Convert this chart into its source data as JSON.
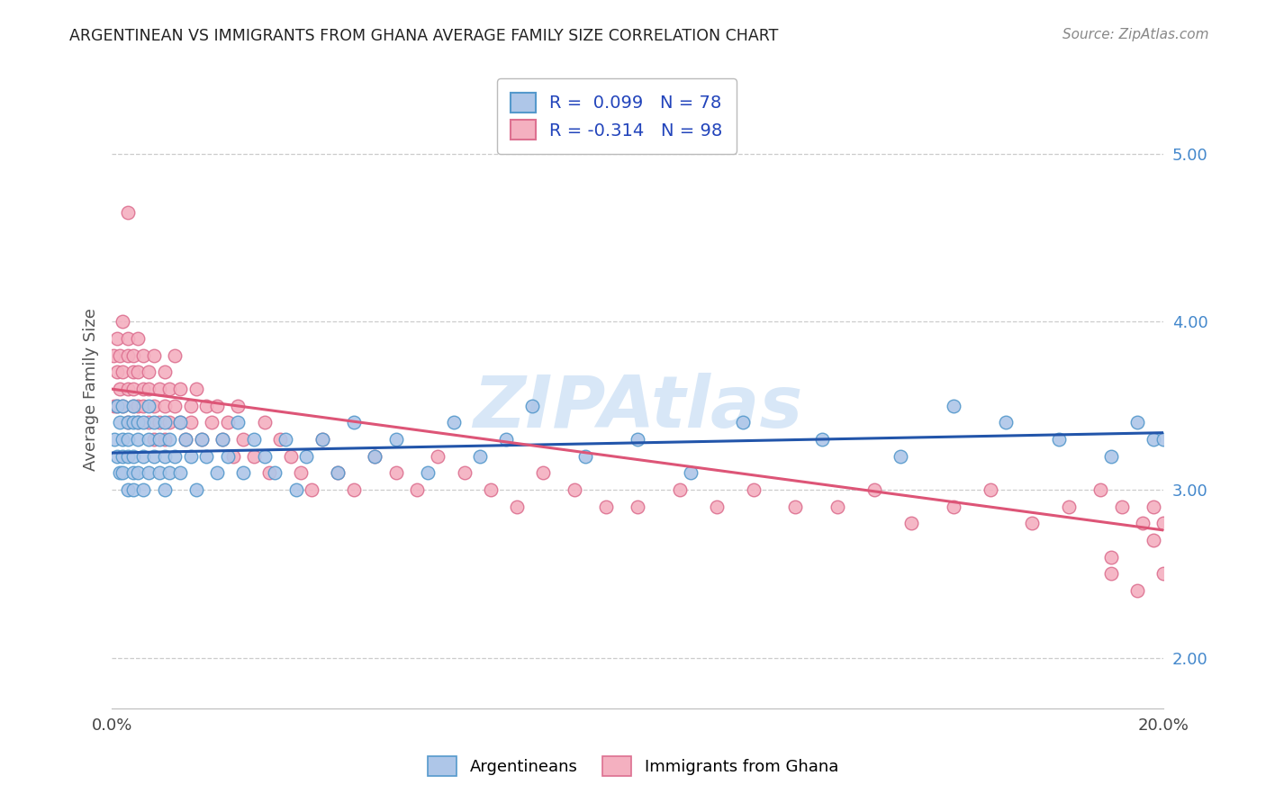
{
  "title": "ARGENTINEAN VS IMMIGRANTS FROM GHANA AVERAGE FAMILY SIZE CORRELATION CHART",
  "source": "Source: ZipAtlas.com",
  "ylabel": "Average Family Size",
  "xlim": [
    0.0,
    0.2
  ],
  "ylim": [
    1.7,
    5.5
  ],
  "yticks_right": [
    2.0,
    3.0,
    4.0,
    5.0
  ],
  "xticks": [
    0.0,
    0.05,
    0.1,
    0.15,
    0.2
  ],
  "xtick_labels": [
    "0.0%",
    "",
    "",
    "",
    "20.0%"
  ],
  "series": [
    {
      "name": "Argentineans",
      "color_face": "#aec6e8",
      "color_edge": "#5599cc",
      "R": 0.099,
      "N": 78,
      "line_color": "#2255aa",
      "trend_x": [
        0.0,
        0.2
      ],
      "trend_y": [
        3.22,
        3.34
      ]
    },
    {
      "name": "Immigrants from Ghana",
      "color_face": "#f4b0c0",
      "color_edge": "#dd7090",
      "R": -0.314,
      "N": 98,
      "line_color": "#dd5577",
      "trend_x": [
        0.0,
        0.2
      ],
      "trend_y": [
        3.6,
        2.76
      ]
    }
  ],
  "legend_text_color": "#2244bb",
  "background_color": "#ffffff",
  "grid_color": "#cccccc",
  "argentineans_x": [
    0.0005,
    0.001,
    0.001,
    0.0015,
    0.0015,
    0.002,
    0.002,
    0.002,
    0.002,
    0.003,
    0.003,
    0.003,
    0.003,
    0.004,
    0.004,
    0.004,
    0.004,
    0.004,
    0.005,
    0.005,
    0.005,
    0.006,
    0.006,
    0.006,
    0.007,
    0.007,
    0.007,
    0.008,
    0.008,
    0.009,
    0.009,
    0.01,
    0.01,
    0.01,
    0.011,
    0.011,
    0.012,
    0.013,
    0.013,
    0.014,
    0.015,
    0.016,
    0.017,
    0.018,
    0.02,
    0.021,
    0.022,
    0.024,
    0.025,
    0.027,
    0.029,
    0.031,
    0.033,
    0.035,
    0.037,
    0.04,
    0.043,
    0.046,
    0.05,
    0.054,
    0.06,
    0.065,
    0.07,
    0.075,
    0.08,
    0.09,
    0.1,
    0.11,
    0.12,
    0.135,
    0.15,
    0.16,
    0.17,
    0.18,
    0.19,
    0.195,
    0.198,
    0.2
  ],
  "argentineans_y": [
    3.3,
    3.2,
    3.5,
    3.1,
    3.4,
    3.3,
    3.1,
    3.5,
    3.2,
    3.4,
    3.2,
    3.0,
    3.3,
    3.5,
    3.2,
    3.0,
    3.4,
    3.1,
    3.3,
    3.1,
    3.4,
    3.2,
    3.0,
    3.4,
    3.3,
    3.1,
    3.5,
    3.2,
    3.4,
    3.3,
    3.1,
    3.2,
    3.4,
    3.0,
    3.3,
    3.1,
    3.2,
    3.4,
    3.1,
    3.3,
    3.2,
    3.0,
    3.3,
    3.2,
    3.1,
    3.3,
    3.2,
    3.4,
    3.1,
    3.3,
    3.2,
    3.1,
    3.3,
    3.0,
    3.2,
    3.3,
    3.1,
    3.4,
    3.2,
    3.3,
    3.1,
    3.4,
    3.2,
    3.3,
    3.5,
    3.2,
    3.3,
    3.1,
    3.4,
    3.3,
    3.2,
    3.5,
    3.4,
    3.3,
    3.2,
    3.4,
    3.3,
    3.3
  ],
  "ghana_x": [
    0.0003,
    0.0005,
    0.001,
    0.001,
    0.001,
    0.0015,
    0.0015,
    0.002,
    0.002,
    0.002,
    0.003,
    0.003,
    0.003,
    0.003,
    0.004,
    0.004,
    0.004,
    0.004,
    0.005,
    0.005,
    0.005,
    0.005,
    0.006,
    0.006,
    0.006,
    0.007,
    0.007,
    0.007,
    0.008,
    0.008,
    0.008,
    0.009,
    0.009,
    0.01,
    0.01,
    0.01,
    0.011,
    0.011,
    0.012,
    0.012,
    0.013,
    0.013,
    0.014,
    0.015,
    0.015,
    0.016,
    0.017,
    0.018,
    0.019,
    0.02,
    0.021,
    0.022,
    0.023,
    0.024,
    0.025,
    0.027,
    0.029,
    0.03,
    0.032,
    0.034,
    0.036,
    0.038,
    0.04,
    0.043,
    0.046,
    0.05,
    0.054,
    0.058,
    0.062,
    0.067,
    0.072,
    0.077,
    0.082,
    0.088,
    0.094,
    0.1,
    0.108,
    0.115,
    0.122,
    0.13,
    0.138,
    0.145,
    0.152,
    0.16,
    0.167,
    0.175,
    0.182,
    0.188,
    0.192,
    0.196,
    0.198,
    0.2,
    0.003,
    0.19,
    0.19,
    0.195,
    0.198,
    0.2
  ],
  "ghana_y": [
    3.8,
    3.5,
    3.9,
    3.7,
    3.5,
    3.8,
    3.6,
    3.7,
    3.5,
    4.0,
    3.8,
    3.6,
    3.4,
    3.9,
    3.7,
    3.5,
    3.8,
    3.6,
    3.9,
    3.5,
    3.7,
    3.4,
    3.8,
    3.6,
    3.5,
    3.7,
    3.4,
    3.6,
    3.8,
    3.5,
    3.3,
    3.6,
    3.4,
    3.5,
    3.7,
    3.3,
    3.6,
    3.4,
    3.8,
    3.5,
    3.4,
    3.6,
    3.3,
    3.5,
    3.4,
    3.6,
    3.3,
    3.5,
    3.4,
    3.5,
    3.3,
    3.4,
    3.2,
    3.5,
    3.3,
    3.2,
    3.4,
    3.1,
    3.3,
    3.2,
    3.1,
    3.0,
    3.3,
    3.1,
    3.0,
    3.2,
    3.1,
    3.0,
    3.2,
    3.1,
    3.0,
    2.9,
    3.1,
    3.0,
    2.9,
    2.9,
    3.0,
    2.9,
    3.0,
    2.9,
    2.9,
    3.0,
    2.8,
    2.9,
    3.0,
    2.8,
    2.9,
    3.0,
    2.9,
    2.8,
    2.9,
    2.8,
    4.65,
    2.5,
    2.6,
    2.4,
    2.7,
    2.5
  ]
}
